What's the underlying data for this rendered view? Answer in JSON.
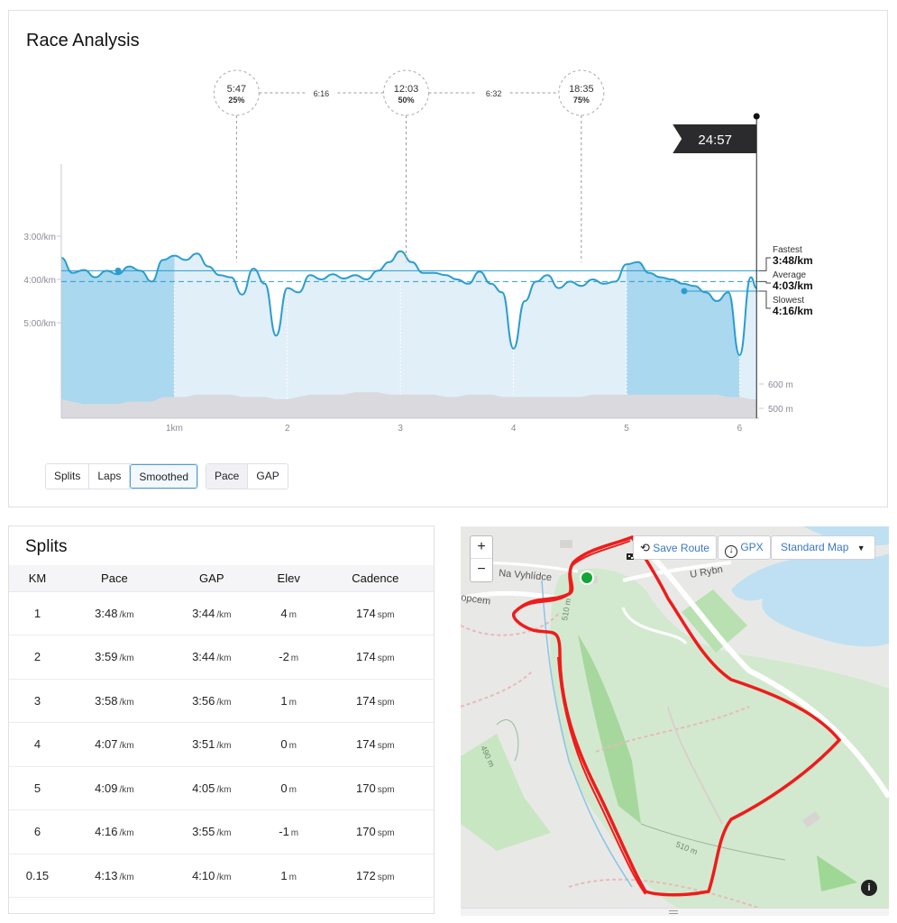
{
  "race": {
    "title": "Race Analysis",
    "finish_time": "24:57",
    "markers": [
      {
        "time": "5:47",
        "pct": "25%"
      },
      {
        "time": "12:03",
        "pct": "50%"
      },
      {
        "time": "18:35",
        "pct": "75%"
      }
    ],
    "segment_times": [
      "6:16",
      "6:32"
    ],
    "pace_labels": [
      "3:00/km",
      "4:00/km",
      "5:00/km"
    ],
    "elev_labels": [
      "600 m",
      "500 m"
    ],
    "km_labels": [
      "1km",
      "2",
      "3",
      "4",
      "5",
      "6"
    ],
    "fastest": {
      "label": "Fastest",
      "value": "3:48/km"
    },
    "average": {
      "label": "Average",
      "value": "4:03/km"
    },
    "slowest": {
      "label": "Slowest",
      "value": "4:16/km"
    },
    "view_buttons": [
      "Splits",
      "Laps",
      "Smoothed"
    ],
    "metric_buttons": [
      "Pace",
      "GAP"
    ],
    "active_view": "Smoothed",
    "active_metric": "Pace"
  },
  "chart_data": {
    "type": "area",
    "title": "",
    "xlabel": "",
    "ylabel": "",
    "x_unit": "km",
    "y_unit": "min/km",
    "ylim_pace": [
      "3:00",
      "5:00"
    ],
    "x": [
      0.0,
      0.1,
      0.2,
      0.3,
      0.4,
      0.5,
      0.6,
      0.7,
      0.8,
      0.9,
      1.0,
      1.1,
      1.2,
      1.3,
      1.4,
      1.5,
      1.6,
      1.7,
      1.8,
      1.9,
      2.0,
      2.1,
      2.2,
      2.3,
      2.4,
      2.5,
      2.6,
      2.7,
      2.8,
      2.9,
      3.0,
      3.1,
      3.2,
      3.3,
      3.4,
      3.5,
      3.6,
      3.7,
      3.8,
      3.9,
      4.0,
      4.1,
      4.2,
      4.3,
      4.4,
      4.5,
      4.6,
      4.7,
      4.8,
      4.9,
      5.0,
      5.1,
      5.2,
      5.3,
      5.4,
      5.5,
      5.6,
      5.7,
      5.8,
      5.9,
      6.0,
      6.1,
      6.15
    ],
    "pace_min_per_km": [
      3.5,
      3.85,
      3.78,
      3.95,
      3.8,
      3.88,
      3.7,
      3.8,
      4.05,
      3.55,
      3.45,
      3.55,
      3.4,
      3.7,
      3.9,
      3.95,
      4.35,
      3.75,
      4.1,
      5.3,
      4.2,
      4.3,
      3.9,
      4.0,
      3.88,
      3.98,
      3.9,
      4.0,
      3.8,
      3.6,
      3.35,
      3.6,
      3.85,
      3.85,
      3.9,
      4.0,
      4.1,
      3.82,
      4.1,
      4.3,
      5.6,
      4.5,
      4.05,
      3.9,
      4.2,
      4.05,
      4.15,
      4.0,
      4.1,
      4.05,
      3.65,
      3.6,
      3.85,
      3.95,
      4.0,
      4.1,
      4.15,
      4.3,
      4.5,
      4.3,
      5.75,
      3.95,
      4.2
    ],
    "elevation_m": [
      495,
      494,
      493,
      493,
      493,
      493,
      494,
      494,
      494,
      496,
      496,
      496,
      497,
      497,
      497,
      497,
      496,
      496,
      496,
      495,
      495,
      496,
      497,
      497,
      497,
      497,
      498,
      498,
      498,
      497,
      497,
      497,
      497,
      497,
      496,
      496,
      497,
      497,
      497,
      496,
      496,
      496,
      496,
      496,
      496,
      496,
      496,
      497,
      497,
      497,
      497,
      497,
      497,
      497,
      497,
      497,
      497,
      497,
      497,
      496,
      496,
      495,
      495
    ],
    "fastest_pace": "3:48/km",
    "average_pace": "4:03/km",
    "slowest_pace": "4:16/km",
    "quartile_markers_km": [
      1.55,
      3.05,
      4.6
    ],
    "finish_km": 6.15
  },
  "splits": {
    "title": "Splits",
    "columns": [
      "KM",
      "Pace",
      "GAP",
      "Elev",
      "Cadence"
    ],
    "rows": [
      {
        "km": "1",
        "pace": "3:48",
        "gap": "3:44",
        "elev": "4",
        "cad": "174"
      },
      {
        "km": "2",
        "pace": "3:59",
        "gap": "3:44",
        "elev": "-2",
        "cad": "174"
      },
      {
        "km": "3",
        "pace": "3:58",
        "gap": "3:56",
        "elev": "1",
        "cad": "174"
      },
      {
        "km": "4",
        "pace": "4:07",
        "gap": "3:51",
        "elev": "0",
        "cad": "174"
      },
      {
        "km": "5",
        "pace": "4:09",
        "gap": "4:05",
        "elev": "0",
        "cad": "170"
      },
      {
        "km": "6",
        "pace": "4:16",
        "gap": "3:55",
        "elev": "-1",
        "cad": "170"
      },
      {
        "km": "0.15",
        "pace": "4:13",
        "gap": "4:10",
        "elev": "1",
        "cad": "172"
      }
    ],
    "units": {
      "pace": "/km",
      "elev": "m",
      "cad": "spm"
    }
  },
  "map": {
    "save_route": "Save Route",
    "gpx": "GPX",
    "map_type": "Standard Map",
    "zoom_in": "+",
    "zoom_out": "−",
    "street_labels": [
      "Na Vyhlídce",
      "U Rybn",
      "opcem"
    ],
    "contour_labels": [
      "510 m",
      "510 m",
      "490 m"
    ],
    "info": "i"
  },
  "colors": {
    "pace_line": "#2a9dcf",
    "pace_fill_dark": "#a9d8ef",
    "pace_fill_light": "#e1eff8",
    "route": "#ee1c1c",
    "start_marker": "#13a538"
  }
}
